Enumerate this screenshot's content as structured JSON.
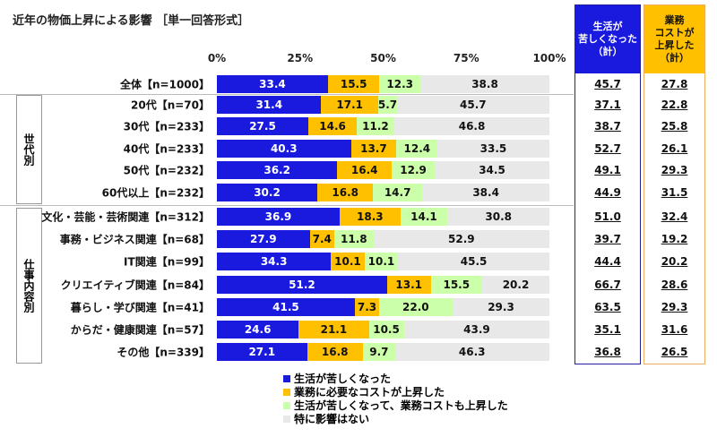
{
  "title": "近年の物価上昇による影響 ［単一回答形式］",
  "chart_data": {
    "type": "bar",
    "orientation": "horizontal",
    "stacked": true,
    "title": "近年の物価上昇による影響 ［単一回答形式］",
    "xlim": [
      0,
      100
    ],
    "xticks": [
      "0%",
      "25%",
      "50%",
      "75%",
      "100%"
    ],
    "categories": [
      "全体【n=1000】",
      "20代【n=70】",
      "30代【n=233】",
      "40代【n=233】",
      "50代【n=232】",
      "60代以上【n=232】",
      "文化・芸能・芸術関連【n=312】",
      "事務・ビジネス関連【n=68】",
      "IT関連【n=99】",
      "クリエイティブ関連【n=84】",
      "暮らし・学び関連【n=41】",
      "からだ・健康関連【n=57】",
      "その他【n=339】"
    ],
    "groups": [
      {
        "label": "世代別",
        "from": 1,
        "to": 5
      },
      {
        "label": "仕事内容別",
        "from": 6,
        "to": 12
      }
    ],
    "series": [
      {
        "name": "生活が苦しくなった",
        "color": "#1a1adf",
        "text_color": "#ffffff",
        "values": [
          33.4,
          31.4,
          27.5,
          40.3,
          36.2,
          30.2,
          36.9,
          27.9,
          34.3,
          51.2,
          41.5,
          24.6,
          27.1
        ]
      },
      {
        "name": "業務に必要なコストが上昇した",
        "color": "#ffc000",
        "text_color": "#111111",
        "values": [
          15.5,
          17.1,
          14.6,
          13.7,
          16.4,
          16.8,
          18.3,
          7.4,
          10.1,
          13.1,
          7.3,
          21.1,
          16.8
        ]
      },
      {
        "name": "生活が苦しくなって、業務コストも上昇した",
        "color": "#ccffaa",
        "text_color": "#111111",
        "values": [
          12.3,
          5.7,
          11.2,
          12.4,
          12.9,
          14.7,
          14.1,
          11.8,
          10.1,
          15.5,
          22.0,
          10.5,
          9.7
        ]
      },
      {
        "name": "特に影響はない",
        "color": "#e8e8e8",
        "text_color": "#111111",
        "values": [
          38.8,
          45.7,
          46.8,
          33.5,
          34.5,
          38.4,
          30.8,
          52.9,
          45.5,
          20.2,
          29.3,
          43.9,
          46.3
        ]
      }
    ],
    "totals": [
      {
        "header": "生活が\n苦しくなった\n（計）",
        "color": "#1a1adf",
        "header_text_color": "#ffffff",
        "values": [
          "45.7",
          "37.1",
          "38.7",
          "52.7",
          "49.1",
          "44.9",
          "51.0",
          "39.7",
          "44.4",
          "66.7",
          "63.5",
          "35.1",
          "36.8"
        ]
      },
      {
        "header": "業務\nコストが\n上昇した\n（計）",
        "color": "#ffc000",
        "header_text_color": "#111111",
        "values": [
          "27.8",
          "22.8",
          "25.8",
          "26.1",
          "29.3",
          "31.5",
          "32.4",
          "19.2",
          "20.2",
          "28.6",
          "29.3",
          "31.6",
          "26.5"
        ]
      }
    ],
    "legend_position": "bottom"
  }
}
